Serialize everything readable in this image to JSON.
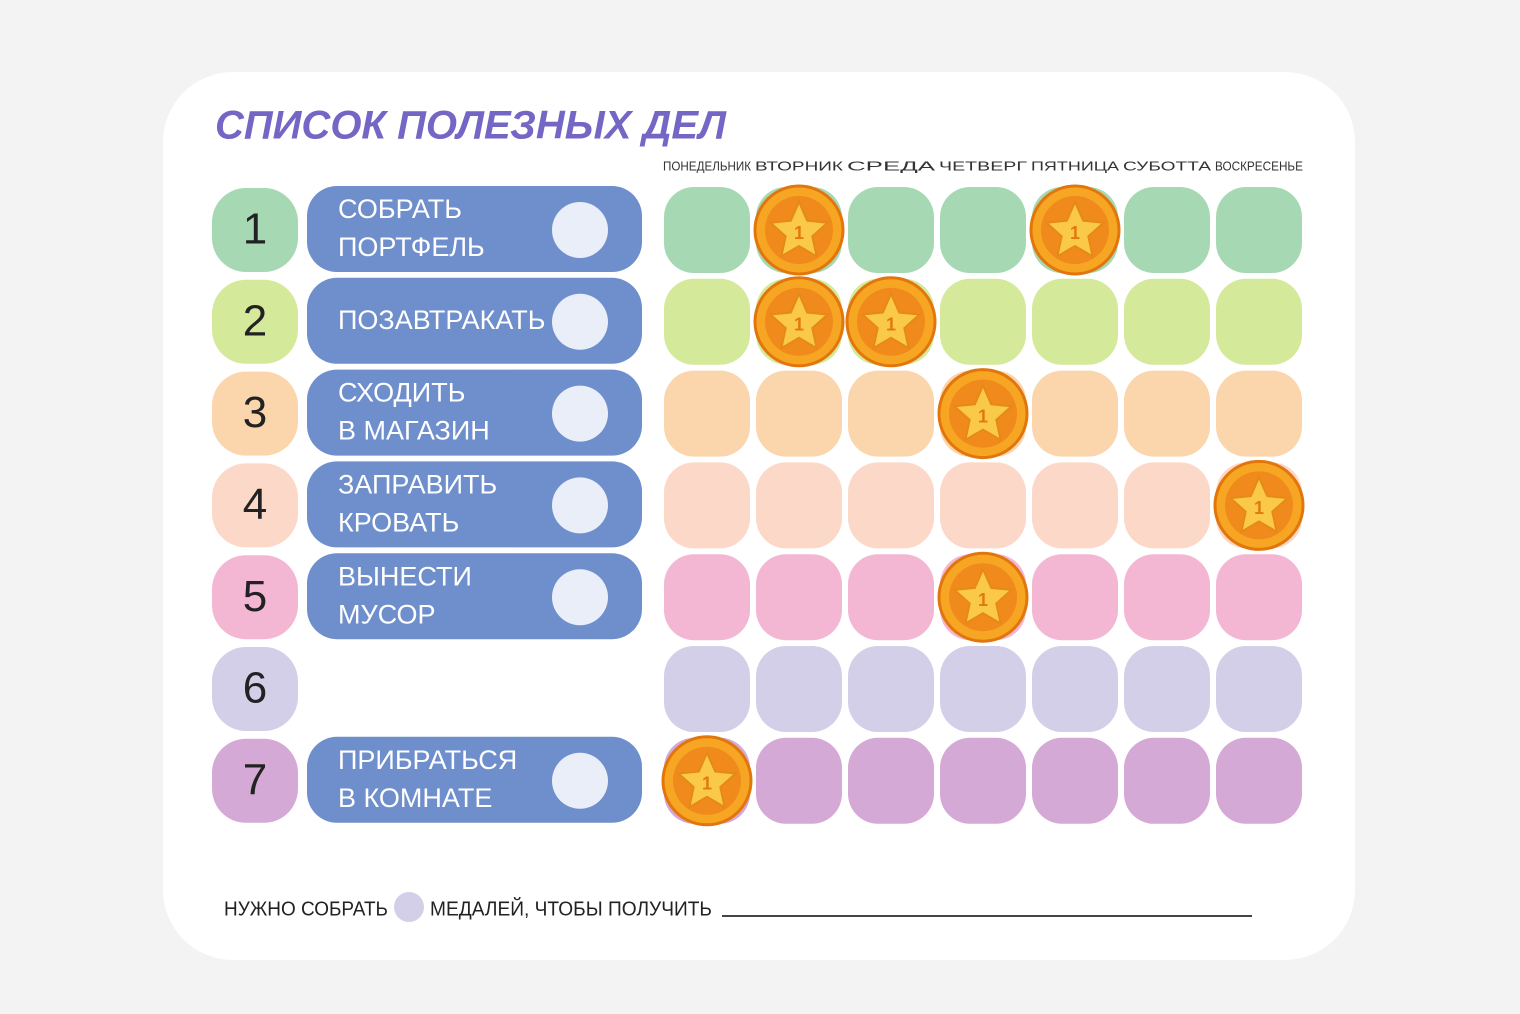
{
  "title": "СПИСОК ПОЛЕЗНЫХ ДЕЛ",
  "days": [
    "ПОНЕДЕЛЬНИК",
    "ВТОРНИК",
    "СРЕДА",
    "ЧЕТВЕРГ",
    "ПЯТНИЦА",
    "СУБОТТА",
    "ВОСКРЕСЕНЬЕ"
  ],
  "coin_label": "1",
  "rows": [
    {
      "number": 1,
      "task": [
        "СОБРАТЬ",
        "ПОРТФЕЛЬ"
      ],
      "color": "#a6d9b3",
      "medals": [
        false,
        true,
        false,
        false,
        true,
        false,
        false
      ]
    },
    {
      "number": 2,
      "task": [
        "ПОЗАВТРАКАТЬ"
      ],
      "color": "#d4ea9a",
      "medals": [
        false,
        true,
        true,
        false,
        false,
        false,
        false
      ]
    },
    {
      "number": 3,
      "task": [
        "СХОДИТЬ",
        "В МАГАЗИН"
      ],
      "color": "#fbd5ac",
      "medals": [
        false,
        false,
        false,
        true,
        false,
        false,
        false
      ]
    },
    {
      "number": 4,
      "task": [
        "ЗАПРАВИТЬ",
        "КРОВАТЬ"
      ],
      "color": "#fcd8c8",
      "medals": [
        false,
        false,
        false,
        false,
        false,
        false,
        true
      ]
    },
    {
      "number": 5,
      "task": [
        "ВЫНЕСТИ",
        "МУСОР"
      ],
      "color": "#f3b7d4",
      "medals": [
        false,
        false,
        false,
        true,
        false,
        false,
        false
      ]
    },
    {
      "number": 6,
      "task": null,
      "color": "#d4cfe8",
      "medals": [
        false,
        false,
        false,
        false,
        false,
        false,
        false
      ]
    },
    {
      "number": 7,
      "task": [
        "ПРИБРАТЬСЯ",
        "В КОМНАТЕ"
      ],
      "color": "#d5a9d6",
      "medals": [
        true,
        false,
        false,
        false,
        false,
        false,
        false
      ]
    }
  ],
  "footer": {
    "before": "НУЖНО СОБРАТЬ",
    "after": "МЕДАЛЕЙ, ЧТОБЫ ПОЛУЧИТЬ"
  }
}
